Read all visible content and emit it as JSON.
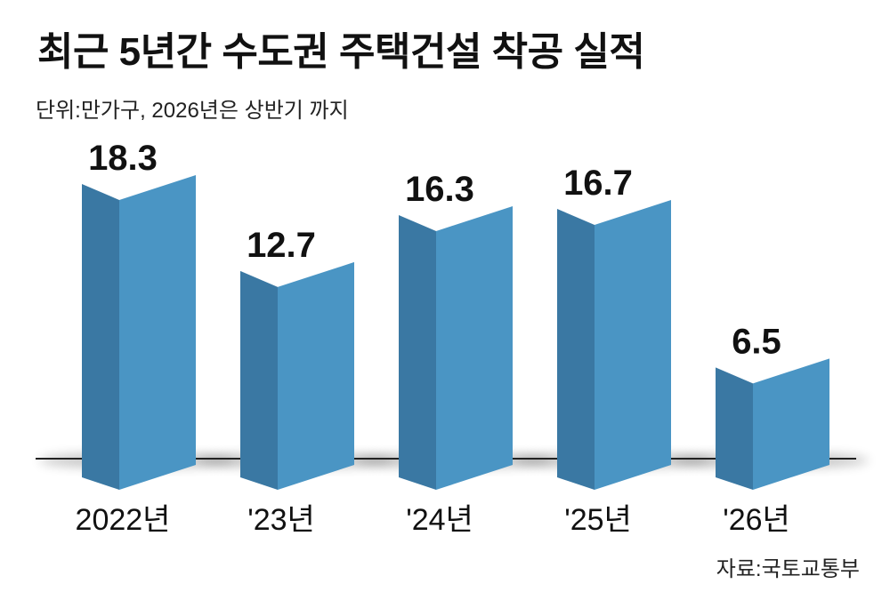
{
  "title": "최근 5년간 수도권 주택건설 착공 실적",
  "subtitle": "단위:만가구, 2026년은 상반기 까지",
  "source": "자료:국토교통부",
  "colors": {
    "bar_front": "#4a95c4",
    "bar_side": "#3a78a3",
    "bar_top": "#ffffff",
    "baseline": "#222222"
  },
  "chart_data": {
    "type": "bar",
    "categories": [
      "2022년",
      "'23년",
      "'24년",
      "'25년",
      "'26년"
    ],
    "values": [
      18.3,
      12.7,
      16.3,
      16.7,
      6.5
    ],
    "value_labels": [
      "18.3",
      "12.7",
      "16.3",
      "16.7",
      "6.5"
    ],
    "title": "최근 5년간 수도권 주택건설 착공 실적",
    "xlabel": "",
    "ylabel": "",
    "unit": "만가구",
    "ylim": [
      0,
      18.3
    ],
    "grid": false,
    "legend": "none",
    "style": "3d-bars"
  }
}
